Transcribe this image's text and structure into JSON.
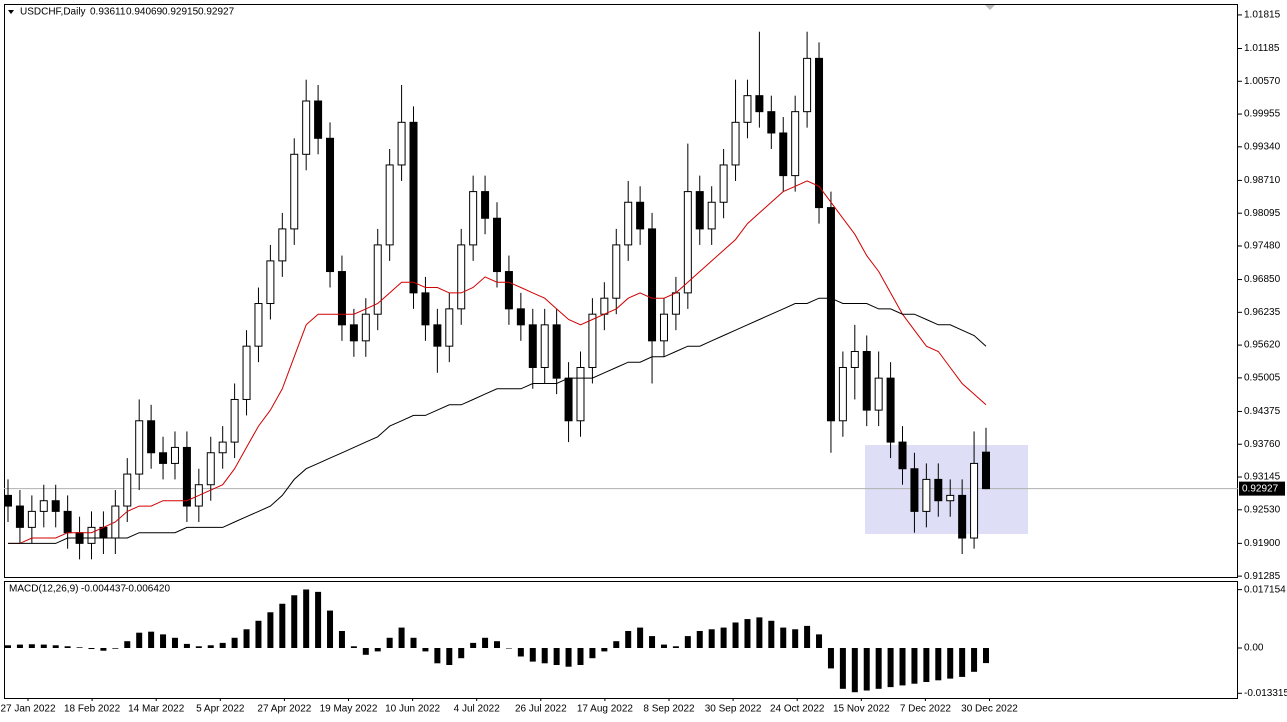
{
  "chart_data": {
    "type": "candlestick",
    "title": "USDCHF,Daily",
    "last": {
      "open": 0.93611,
      "high": 0.94069,
      "low": 0.92915,
      "close": 0.92927
    },
    "candles": [
      [
        0.928,
        0.931,
        0.923,
        0.926
      ],
      [
        0.926,
        0.929,
        0.919,
        0.922
      ],
      [
        0.922,
        0.928,
        0.919,
        0.925
      ],
      [
        0.925,
        0.93,
        0.922,
        0.927
      ],
      [
        0.927,
        0.93,
        0.922,
        0.925
      ],
      [
        0.925,
        0.928,
        0.918,
        0.921
      ],
      [
        0.921,
        0.924,
        0.916,
        0.919
      ],
      [
        0.919,
        0.925,
        0.916,
        0.922
      ],
      [
        0.922,
        0.925,
        0.917,
        0.92
      ],
      [
        0.92,
        0.929,
        0.917,
        0.926
      ],
      [
        0.926,
        0.935,
        0.923,
        0.932
      ],
      [
        0.932,
        0.946,
        0.929,
        0.942
      ],
      [
        0.942,
        0.945,
        0.933,
        0.936
      ],
      [
        0.936,
        0.939,
        0.931,
        0.934
      ],
      [
        0.934,
        0.94,
        0.931,
        0.937
      ],
      [
        0.937,
        0.94,
        0.923,
        0.926
      ],
      [
        0.926,
        0.933,
        0.923,
        0.93
      ],
      [
        0.93,
        0.939,
        0.927,
        0.936
      ],
      [
        0.936,
        0.941,
        0.933,
        0.938
      ],
      [
        0.938,
        0.949,
        0.935,
        0.946
      ],
      [
        0.946,
        0.959,
        0.943,
        0.956
      ],
      [
        0.956,
        0.967,
        0.953,
        0.964
      ],
      [
        0.964,
        0.975,
        0.961,
        0.972
      ],
      [
        0.972,
        0.981,
        0.969,
        0.978
      ],
      [
        0.978,
        0.995,
        0.975,
        0.992
      ],
      [
        0.992,
        1.006,
        0.989,
        1.002
      ],
      [
        1.002,
        1.005,
        0.992,
        0.995
      ],
      [
        0.995,
        0.998,
        0.967,
        0.97
      ],
      [
        0.97,
        0.973,
        0.957,
        0.96
      ],
      [
        0.96,
        0.963,
        0.954,
        0.957
      ],
      [
        0.957,
        0.965,
        0.954,
        0.962
      ],
      [
        0.962,
        0.978,
        0.959,
        0.975
      ],
      [
        0.975,
        0.993,
        0.972,
        0.99
      ],
      [
        0.99,
        1.005,
        0.987,
        0.998
      ],
      [
        0.998,
        1.001,
        0.963,
        0.966
      ],
      [
        0.966,
        0.969,
        0.957,
        0.96
      ],
      [
        0.96,
        0.963,
        0.951,
        0.956
      ],
      [
        0.956,
        0.966,
        0.953,
        0.963
      ],
      [
        0.963,
        0.978,
        0.96,
        0.975
      ],
      [
        0.975,
        0.988,
        0.972,
        0.985
      ],
      [
        0.985,
        0.988,
        0.977,
        0.98
      ],
      [
        0.98,
        0.983,
        0.967,
        0.97
      ],
      [
        0.97,
        0.973,
        0.96,
        0.963
      ],
      [
        0.963,
        0.966,
        0.957,
        0.96
      ],
      [
        0.96,
        0.963,
        0.948,
        0.952
      ],
      [
        0.952,
        0.963,
        0.949,
        0.96
      ],
      [
        0.96,
        0.963,
        0.947,
        0.95
      ],
      [
        0.95,
        0.953,
        0.938,
        0.942
      ],
      [
        0.942,
        0.955,
        0.939,
        0.952
      ],
      [
        0.952,
        0.965,
        0.949,
        0.962
      ],
      [
        0.962,
        0.968,
        0.959,
        0.965
      ],
      [
        0.965,
        0.978,
        0.962,
        0.975
      ],
      [
        0.975,
        0.987,
        0.972,
        0.983
      ],
      [
        0.983,
        0.986,
        0.975,
        0.978
      ],
      [
        0.978,
        0.981,
        0.949,
        0.957
      ],
      [
        0.957,
        0.965,
        0.954,
        0.962
      ],
      [
        0.962,
        0.969,
        0.959,
        0.966
      ],
      [
        0.966,
        0.994,
        0.963,
        0.985
      ],
      [
        0.985,
        0.988,
        0.975,
        0.978
      ],
      [
        0.978,
        0.986,
        0.975,
        0.983
      ],
      [
        0.983,
        0.993,
        0.98,
        0.99
      ],
      [
        0.99,
        1.006,
        0.987,
        0.998
      ],
      [
        0.998,
        1.006,
        0.995,
        1.003
      ],
      [
        1.003,
        1.015,
        0.997,
        1.0
      ],
      [
        1.0,
        1.003,
        0.993,
        0.996
      ],
      [
        0.996,
        0.999,
        0.985,
        0.988
      ],
      [
        0.988,
        1.003,
        0.985,
        1.0
      ],
      [
        1.0,
        1.015,
        0.997,
        1.01
      ],
      [
        1.01,
        1.013,
        0.979,
        0.982
      ],
      [
        0.982,
        0.985,
        0.936,
        0.942
      ],
      [
        0.942,
        0.955,
        0.939,
        0.952
      ],
      [
        0.952,
        0.96,
        0.946,
        0.955
      ],
      [
        0.955,
        0.958,
        0.941,
        0.944
      ],
      [
        0.944,
        0.955,
        0.941,
        0.95
      ],
      [
        0.95,
        0.953,
        0.935,
        0.938
      ],
      [
        0.938,
        0.941,
        0.93,
        0.933
      ],
      [
        0.933,
        0.936,
        0.921,
        0.925
      ],
      [
        0.925,
        0.934,
        0.922,
        0.931
      ],
      [
        0.931,
        0.934,
        0.924,
        0.927
      ],
      [
        0.927,
        0.931,
        0.924,
        0.928
      ],
      [
        0.928,
        0.931,
        0.917,
        0.92
      ],
      [
        0.92,
        0.94,
        0.918,
        0.934
      ]
    ],
    "ylim": [
      0.9125,
      1.0202
    ],
    "yticks": [
      1.01815,
      1.01185,
      {
        "value": 1.0057,
        "label": "1.00570"
      },
      0.99955,
      {
        "value": 0.9934,
        "label": "0.99340"
      },
      {
        "value": 0.9871,
        "label": "0.98710"
      },
      0.98095,
      {
        "value": 0.9748,
        "label": "0.97480"
      },
      {
        "value": 0.9685,
        "label": "0.96850"
      },
      0.96235,
      {
        "value": 0.9562,
        "label": "0.95620"
      },
      0.95005,
      0.94375,
      {
        "value": 0.9376,
        "label": "0.93760"
      },
      0.93145,
      {
        "value": 0.9253,
        "label": "0.92530"
      },
      {
        "value": 0.919,
        "label": "0.91900"
      },
      0.91285
    ],
    "moving_averages": [
      {
        "color": "#d00000",
        "values": [
          0.919,
          0.919,
          0.92,
          0.92,
          0.92,
          0.921,
          0.921,
          0.921,
          0.922,
          0.923,
          0.925,
          0.926,
          0.926,
          0.927,
          0.927,
          0.927,
          0.928,
          0.929,
          0.93,
          0.933,
          0.937,
          0.941,
          0.944,
          0.948,
          0.954,
          0.96,
          0.962,
          0.962,
          0.962,
          0.962,
          0.963,
          0.964,
          0.966,
          0.968,
          0.968,
          0.967,
          0.967,
          0.966,
          0.966,
          0.967,
          0.969,
          0.968,
          0.968,
          0.967,
          0.966,
          0.965,
          0.963,
          0.961,
          0.96,
          0.961,
          0.962,
          0.963,
          0.965,
          0.966,
          0.965,
          0.965,
          0.966,
          0.968,
          0.97,
          0.972,
          0.974,
          0.976,
          0.979,
          0.981,
          0.983,
          0.985,
          0.986,
          0.987,
          0.986,
          0.983,
          0.98,
          0.977,
          0.973,
          0.97,
          0.966,
          0.962,
          0.959,
          0.956,
          0.955,
          0.952,
          0.949,
          0.947,
          0.945
        ]
      },
      {
        "color": "#000000",
        "values": [
          0.919,
          0.919,
          0.919,
          0.919,
          0.919,
          0.92,
          0.92,
          0.92,
          0.92,
          0.92,
          0.92,
          0.921,
          0.921,
          0.921,
          0.921,
          0.922,
          0.922,
          0.922,
          0.922,
          0.923,
          0.924,
          0.925,
          0.926,
          0.928,
          0.931,
          0.933,
          0.934,
          0.935,
          0.936,
          0.937,
          0.938,
          0.939,
          0.941,
          0.942,
          0.943,
          0.943,
          0.944,
          0.945,
          0.945,
          0.946,
          0.947,
          0.948,
          0.948,
          0.948,
          0.949,
          0.949,
          0.949,
          0.95,
          0.95,
          0.95,
          0.951,
          0.952,
          0.953,
          0.953,
          0.954,
          0.954,
          0.955,
          0.956,
          0.956,
          0.957,
          0.958,
          0.959,
          0.96,
          0.961,
          0.962,
          0.963,
          0.964,
          0.964,
          0.965,
          0.965,
          0.964,
          0.964,
          0.964,
          0.963,
          0.963,
          0.962,
          0.962,
          0.961,
          0.96,
          0.96,
          0.959,
          0.958,
          0.956
        ]
      }
    ],
    "x_labels": [
      "27 Jan 2022",
      "18 Feb 2022",
      "14 Mar 2022",
      "5 Apr 2022",
      "27 Apr 2022",
      "19 May 2022",
      "10 Jun 2022",
      "4 Jul 2022",
      "26 Jul 2022",
      "17 Aug 2022",
      "8 Sep 2022",
      "30 Sep 2022",
      "24 Oct 2022",
      "15 Nov 2022",
      "7 Dec 2022",
      "30 Dec 2022"
    ],
    "macd": {
      "type": "histogram",
      "title": "MACD(12,26,9)",
      "main": -0.004437,
      "signal": {
        "value": -0.00642,
        "label": "-0.006420"
      },
      "color": "#000000",
      "values": [
        0.0008,
        0.001,
        0.0011,
        0.001,
        0.0008,
        0.0005,
        0.0002,
        -0.0003,
        -0.0008,
        -0.0002,
        0.002,
        0.0045,
        0.0048,
        0.004,
        0.003,
        0.0012,
        0.0005,
        0.0008,
        0.0015,
        0.003,
        0.0055,
        0.008,
        0.0105,
        0.013,
        0.0155,
        0.0172,
        0.0165,
        0.011,
        0.005,
        0.0005,
        -0.002,
        -0.001,
        0.003,
        0.006,
        0.003,
        -0.001,
        -0.0045,
        -0.005,
        -0.003,
        0.0015,
        0.003,
        0.002,
        0.0,
        -0.0025,
        -0.004,
        -0.0045,
        -0.005,
        -0.0055,
        -0.005,
        -0.003,
        -0.001,
        0.002,
        0.005,
        0.006,
        0.0035,
        0.001,
        0.0005,
        0.0035,
        0.005,
        0.0055,
        0.006,
        0.0075,
        0.0085,
        0.009,
        0.008,
        0.006,
        0.0055,
        0.0065,
        0.004,
        -0.006,
        -0.012,
        -0.013,
        -0.0125,
        -0.012,
        -0.0115,
        -0.011,
        -0.0105,
        -0.01,
        -0.0095,
        -0.009,
        -0.0085,
        -0.007
      ],
      "ylim": [
        -0.0147,
        0.0194
      ],
      "yticks": [
        0.017154,
        {
          "value": 0,
          "label": "0.00"
        },
        -0.013315
      ]
    }
  }
}
